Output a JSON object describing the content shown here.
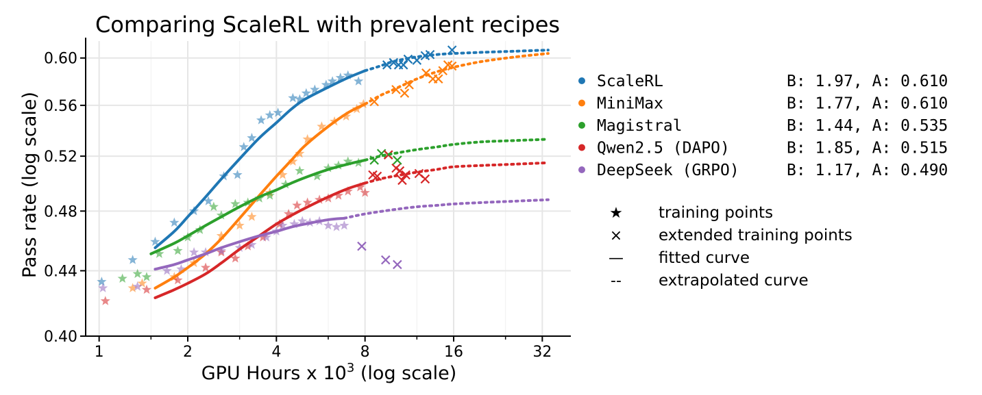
{
  "chart_data": {
    "type": "line",
    "title": "Comparing ScaleRL with prevalent recipes",
    "xlabel": "GPU Hours x 10",
    "xlabel_superscript": "3",
    "xlabel_suffix": " (log scale)",
    "ylabel": "Pass rate (log scale)",
    "x_scale": "log2",
    "y_scale": "log",
    "xlim": [
      0.9,
      40
    ],
    "ylim": [
      0.4,
      0.615
    ],
    "x_ticks": [
      1,
      2,
      4,
      8,
      16,
      32
    ],
    "x_tick_labels": [
      "1",
      "2",
      "4",
      "8",
      "16",
      "32"
    ],
    "y_ticks": [
      0.4,
      0.44,
      0.48,
      0.52,
      0.56,
      0.6
    ],
    "y_tick_labels": [
      "0.40",
      "0.44",
      "0.48",
      "0.52",
      "0.56",
      "0.60"
    ],
    "grid": true,
    "legend_position": "right",
    "series": [
      {
        "name": "ScaleRL",
        "params": "B: 1.97, A: 0.610",
        "color": "#1f77b4",
        "fit_range": [
          1.55,
          8.0
        ],
        "extrapolate_range": [
          8.0,
          33.5
        ],
        "curve": [
          [
            1.55,
            0.455
          ],
          [
            1.8,
            0.466
          ],
          [
            2.0,
            0.476
          ],
          [
            2.3,
            0.49
          ],
          [
            2.6,
            0.503
          ],
          [
            3.0,
            0.518
          ],
          [
            3.5,
            0.534
          ],
          [
            4.0,
            0.546
          ],
          [
            4.5,
            0.557
          ],
          [
            5.0,
            0.565
          ],
          [
            6.0,
            0.575
          ],
          [
            7.0,
            0.583
          ],
          [
            8.0,
            0.589
          ],
          [
            9.0,
            0.593
          ],
          [
            10.0,
            0.597
          ],
          [
            12.0,
            0.601
          ],
          [
            14.0,
            0.603
          ],
          [
            16.0,
            0.604
          ],
          [
            20.0,
            0.605
          ],
          [
            26.0,
            0.606
          ],
          [
            33.5,
            0.607
          ]
        ],
        "training_points": [
          [
            1.02,
            0.433
          ],
          [
            1.3,
            0.447
          ],
          [
            1.55,
            0.459
          ],
          [
            1.8,
            0.472
          ],
          [
            2.1,
            0.48
          ],
          [
            2.35,
            0.487
          ],
          [
            2.65,
            0.505
          ],
          [
            2.95,
            0.506
          ],
          [
            3.1,
            0.527
          ],
          [
            3.3,
            0.534
          ],
          [
            3.55,
            0.548
          ],
          [
            3.8,
            0.552
          ],
          [
            4.05,
            0.554
          ],
          [
            4.55,
            0.566
          ],
          [
            4.8,
            0.565
          ],
          [
            5.05,
            0.57
          ],
          [
            5.4,
            0.573
          ],
          [
            5.9,
            0.577
          ],
          [
            6.2,
            0.58
          ],
          [
            6.6,
            0.583
          ],
          [
            7.0,
            0.585
          ],
          [
            7.6,
            0.58
          ]
        ],
        "extended_points": [
          [
            9.5,
            0.594
          ],
          [
            10.0,
            0.596
          ],
          [
            10.4,
            0.594
          ],
          [
            10.8,
            0.594
          ],
          [
            11.2,
            0.599
          ],
          [
            12.0,
            0.598
          ],
          [
            12.8,
            0.602
          ],
          [
            13.3,
            0.603
          ],
          [
            15.8,
            0.607
          ]
        ]
      },
      {
        "name": "MiniMax",
        "params": "B: 1.77, A: 0.610",
        "color": "#ff7f0e",
        "fit_range": [
          1.55,
          8.0
        ],
        "extrapolate_range": [
          8.0,
          33.5
        ],
        "curve": [
          [
            1.55,
            0.429
          ],
          [
            1.8,
            0.436
          ],
          [
            2.0,
            0.442
          ],
          [
            2.3,
            0.451
          ],
          [
            2.6,
            0.461
          ],
          [
            3.0,
            0.475
          ],
          [
            3.5,
            0.491
          ],
          [
            4.0,
            0.505
          ],
          [
            4.5,
            0.517
          ],
          [
            5.0,
            0.528
          ],
          [
            6.0,
            0.543
          ],
          [
            7.0,
            0.554
          ],
          [
            8.0,
            0.561
          ],
          [
            9.0,
            0.568
          ],
          [
            10.0,
            0.573
          ],
          [
            12.0,
            0.582
          ],
          [
            14.0,
            0.588
          ],
          [
            16.0,
            0.592
          ],
          [
            20.0,
            0.597
          ],
          [
            26.0,
            0.601
          ],
          [
            33.5,
            0.604
          ]
        ],
        "training_points": [
          [
            1.3,
            0.429
          ],
          [
            1.4,
            0.432
          ],
          [
            1.8,
            0.436
          ],
          [
            2.1,
            0.445
          ],
          [
            2.6,
            0.463
          ],
          [
            3.0,
            0.47
          ],
          [
            3.3,
            0.476
          ],
          [
            3.8,
            0.493
          ],
          [
            4.2,
            0.506
          ],
          [
            4.55,
            0.516
          ],
          [
            4.8,
            0.522
          ],
          [
            5.1,
            0.533
          ],
          [
            5.7,
            0.543
          ],
          [
            6.3,
            0.547
          ],
          [
            6.9,
            0.551
          ],
          [
            7.5,
            0.557
          ],
          [
            7.9,
            0.561
          ]
        ],
        "extended_points": [
          [
            8.6,
            0.563
          ],
          [
            10.2,
            0.573
          ],
          [
            10.9,
            0.57
          ],
          [
            11.3,
            0.577
          ],
          [
            12.9,
            0.587
          ],
          [
            13.6,
            0.582
          ],
          [
            14.2,
            0.582
          ],
          [
            14.7,
            0.589
          ],
          [
            15.3,
            0.594
          ],
          [
            15.8,
            0.593
          ]
        ]
      },
      {
        "name": "Magistral",
        "params": "B: 1.44, A: 0.535",
        "color": "#2ca02c",
        "fit_range": [
          1.5,
          8.0
        ],
        "extrapolate_range": [
          8.0,
          33.5
        ],
        "curve": [
          [
            1.5,
            0.451
          ],
          [
            1.8,
            0.458
          ],
          [
            2.0,
            0.463
          ],
          [
            2.3,
            0.47
          ],
          [
            2.6,
            0.476
          ],
          [
            3.0,
            0.483
          ],
          [
            3.5,
            0.49
          ],
          [
            4.0,
            0.495
          ],
          [
            4.5,
            0.5
          ],
          [
            5.0,
            0.504
          ],
          [
            6.0,
            0.51
          ],
          [
            7.0,
            0.514
          ],
          [
            8.0,
            0.517
          ],
          [
            9.0,
            0.52
          ],
          [
            10.0,
            0.522
          ],
          [
            12.0,
            0.525
          ],
          [
            14.0,
            0.527
          ],
          [
            16.0,
            0.529
          ],
          [
            20.0,
            0.531
          ],
          [
            26.0,
            0.532
          ],
          [
            33.5,
            0.533
          ]
        ],
        "training_points": [
          [
            1.2,
            0.435
          ],
          [
            1.35,
            0.438
          ],
          [
            1.45,
            0.436
          ],
          [
            1.6,
            0.451
          ],
          [
            1.85,
            0.453
          ],
          [
            2.0,
            0.462
          ],
          [
            2.2,
            0.467
          ],
          [
            2.45,
            0.483
          ],
          [
            2.6,
            0.477
          ],
          [
            2.9,
            0.485
          ],
          [
            3.2,
            0.486
          ],
          [
            3.5,
            0.489
          ],
          [
            3.8,
            0.491
          ],
          [
            4.3,
            0.499
          ],
          [
            4.8,
            0.509
          ],
          [
            5.5,
            0.505
          ],
          [
            6.0,
            0.511
          ],
          [
            6.5,
            0.513
          ],
          [
            7.0,
            0.516
          ],
          [
            7.6,
            0.515
          ]
        ],
        "extended_points": [
          [
            8.6,
            0.517
          ],
          [
            9.1,
            0.522
          ],
          [
            9.6,
            0.521
          ],
          [
            10.3,
            0.517
          ]
        ]
      },
      {
        "name": "Qwen2.5 (DAPO)",
        "params": "B: 1.85, A: 0.515",
        "color": "#d62728",
        "fit_range": [
          1.55,
          8.0
        ],
        "extrapolate_range": [
          8.0,
          33.5
        ],
        "curve": [
          [
            1.55,
            0.423
          ],
          [
            1.8,
            0.428
          ],
          [
            2.0,
            0.432
          ],
          [
            2.3,
            0.438
          ],
          [
            2.6,
            0.445
          ],
          [
            3.0,
            0.454
          ],
          [
            3.5,
            0.463
          ],
          [
            4.0,
            0.471
          ],
          [
            4.5,
            0.477
          ],
          [
            5.0,
            0.482
          ],
          [
            6.0,
            0.49
          ],
          [
            7.0,
            0.496
          ],
          [
            8.0,
            0.5
          ],
          [
            9.0,
            0.503
          ],
          [
            10.0,
            0.505
          ],
          [
            12.0,
            0.508
          ],
          [
            14.0,
            0.51
          ],
          [
            16.0,
            0.512
          ],
          [
            20.0,
            0.513
          ],
          [
            26.0,
            0.514
          ],
          [
            33.5,
            0.515
          ]
        ],
        "training_points": [
          [
            1.05,
            0.421
          ],
          [
            1.45,
            0.428
          ],
          [
            1.85,
            0.434
          ],
          [
            2.3,
            0.442
          ],
          [
            2.6,
            0.452
          ],
          [
            2.9,
            0.448
          ],
          [
            3.2,
            0.456
          ],
          [
            3.6,
            0.462
          ],
          [
            4.1,
            0.471
          ],
          [
            4.4,
            0.478
          ],
          [
            4.7,
            0.484
          ],
          [
            5.1,
            0.486
          ],
          [
            5.6,
            0.488
          ],
          [
            6.0,
            0.489
          ],
          [
            6.5,
            0.491
          ],
          [
            7.0,
            0.494
          ],
          [
            7.7,
            0.497
          ],
          [
            8.0,
            0.493
          ]
        ],
        "extended_points": [
          [
            8.5,
            0.506
          ],
          [
            8.8,
            0.505
          ],
          [
            9.6,
            0.521
          ],
          [
            10.2,
            0.511
          ],
          [
            10.5,
            0.509
          ],
          [
            10.7,
            0.502
          ],
          [
            11.0,
            0.506
          ],
          [
            12.2,
            0.507
          ],
          [
            12.8,
            0.503
          ]
        ]
      },
      {
        "name": "DeepSeek (GRPO)",
        "params": "B: 1.17, A: 0.490",
        "color": "#9467bd",
        "fit_range": [
          1.55,
          6.8
        ],
        "extrapolate_range": [
          6.8,
          33.5
        ],
        "curve": [
          [
            1.55,
            0.441
          ],
          [
            1.8,
            0.444
          ],
          [
            2.0,
            0.447
          ],
          [
            2.3,
            0.451
          ],
          [
            2.6,
            0.455
          ],
          [
            3.0,
            0.459
          ],
          [
            3.5,
            0.463
          ],
          [
            4.0,
            0.466
          ],
          [
            4.5,
            0.469
          ],
          [
            5.0,
            0.471
          ],
          [
            6.0,
            0.474
          ],
          [
            6.8,
            0.475
          ],
          [
            8.0,
            0.478
          ],
          [
            10.0,
            0.481
          ],
          [
            12.0,
            0.483
          ],
          [
            14.0,
            0.484
          ],
          [
            16.0,
            0.485
          ],
          [
            20.0,
            0.486
          ],
          [
            26.0,
            0.487
          ],
          [
            33.5,
            0.488
          ]
        ],
        "training_points": [
          [
            1.03,
            0.429
          ],
          [
            1.35,
            0.43
          ],
          [
            1.7,
            0.44
          ],
          [
            1.9,
            0.441
          ],
          [
            2.1,
            0.452
          ],
          [
            2.3,
            0.452
          ],
          [
            2.6,
            0.453
          ],
          [
            3.0,
            0.455
          ],
          [
            3.3,
            0.457
          ],
          [
            3.7,
            0.462
          ],
          [
            4.0,
            0.466
          ],
          [
            4.2,
            0.47
          ],
          [
            4.6,
            0.471
          ],
          [
            4.9,
            0.473
          ],
          [
            5.2,
            0.472
          ],
          [
            5.6,
            0.473
          ],
          [
            6.0,
            0.47
          ],
          [
            6.4,
            0.469
          ],
          [
            6.8,
            0.47
          ]
        ],
        "extended_points": [
          [
            7.8,
            0.456
          ],
          [
            9.4,
            0.447
          ],
          [
            10.3,
            0.444
          ]
        ]
      }
    ],
    "marker_legend": [
      {
        "glyph": "★",
        "label": "training points"
      },
      {
        "glyph": "×",
        "label": "extended training points"
      },
      {
        "glyph": "—",
        "label": "fitted curve"
      },
      {
        "glyph": "--",
        "label": "extrapolated curve"
      }
    ]
  }
}
